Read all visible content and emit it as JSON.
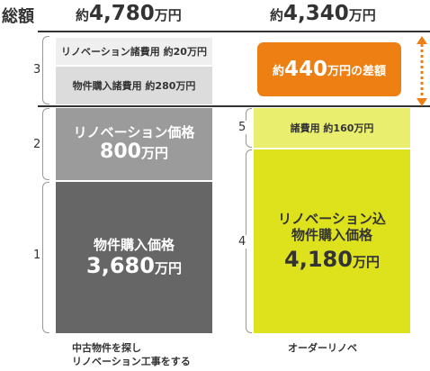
{
  "header": {
    "title": "総額",
    "left_total": {
      "prefix": "約",
      "value": "4,780",
      "unit": "万円"
    },
    "right_total": {
      "prefix": "約",
      "value": "4,340",
      "unit": "万円"
    }
  },
  "left_column": {
    "fees_top": "リノベーション諸費用 約20万円",
    "fees_purchase": "物件購入諸費用 約280万円",
    "renovation": {
      "label": "リノベーション価格",
      "value": "800",
      "unit": "万円"
    },
    "property": {
      "label": "物件購入価格",
      "value": "3,680",
      "unit": "万円"
    },
    "caption_line1": "中古物件を探し",
    "caption_line2": "リノベーション工事をする"
  },
  "right_column": {
    "difference": {
      "prefix": "約",
      "value": "440",
      "unit": "万円の差額"
    },
    "fees": "諸費用 約160万円",
    "main": {
      "label_line1": "リノベーション込",
      "label_line2": "物件購入価格",
      "value": "4,180",
      "unit": "万円"
    },
    "caption": "オーダーリノベ"
  },
  "brackets": [
    "3",
    "2",
    "1",
    "5",
    "4"
  ],
  "colors": {
    "left_fees": "#efefef",
    "left_purchase_fee": "#dcdcdc",
    "left_renovation": "#9b9b9b",
    "left_property": "#666666",
    "right_fees": "#e9ee6e",
    "right_main": "#dde21c",
    "difference_badge": "#ee7f12"
  },
  "chart_data": {
    "type": "bar",
    "stacked": true,
    "categories": [
      "中古物件を探し リノベーション工事をする",
      "オーダーリノベ"
    ],
    "series": [
      {
        "name": "物件購入価格",
        "values": [
          3680,
          null
        ]
      },
      {
        "name": "リノベーション価格",
        "values": [
          800,
          null
        ]
      },
      {
        "name": "物件購入諸費用",
        "values": [
          280,
          null
        ]
      },
      {
        "name": "リノベーション諸費用",
        "values": [
          20,
          null
        ]
      },
      {
        "name": "リノベーション込 物件購入価格",
        "values": [
          null,
          4180
        ]
      },
      {
        "name": "諸費用",
        "values": [
          null,
          160
        ]
      }
    ],
    "totals": [
      4780,
      4340
    ],
    "difference": 440,
    "unit": "万円"
  }
}
